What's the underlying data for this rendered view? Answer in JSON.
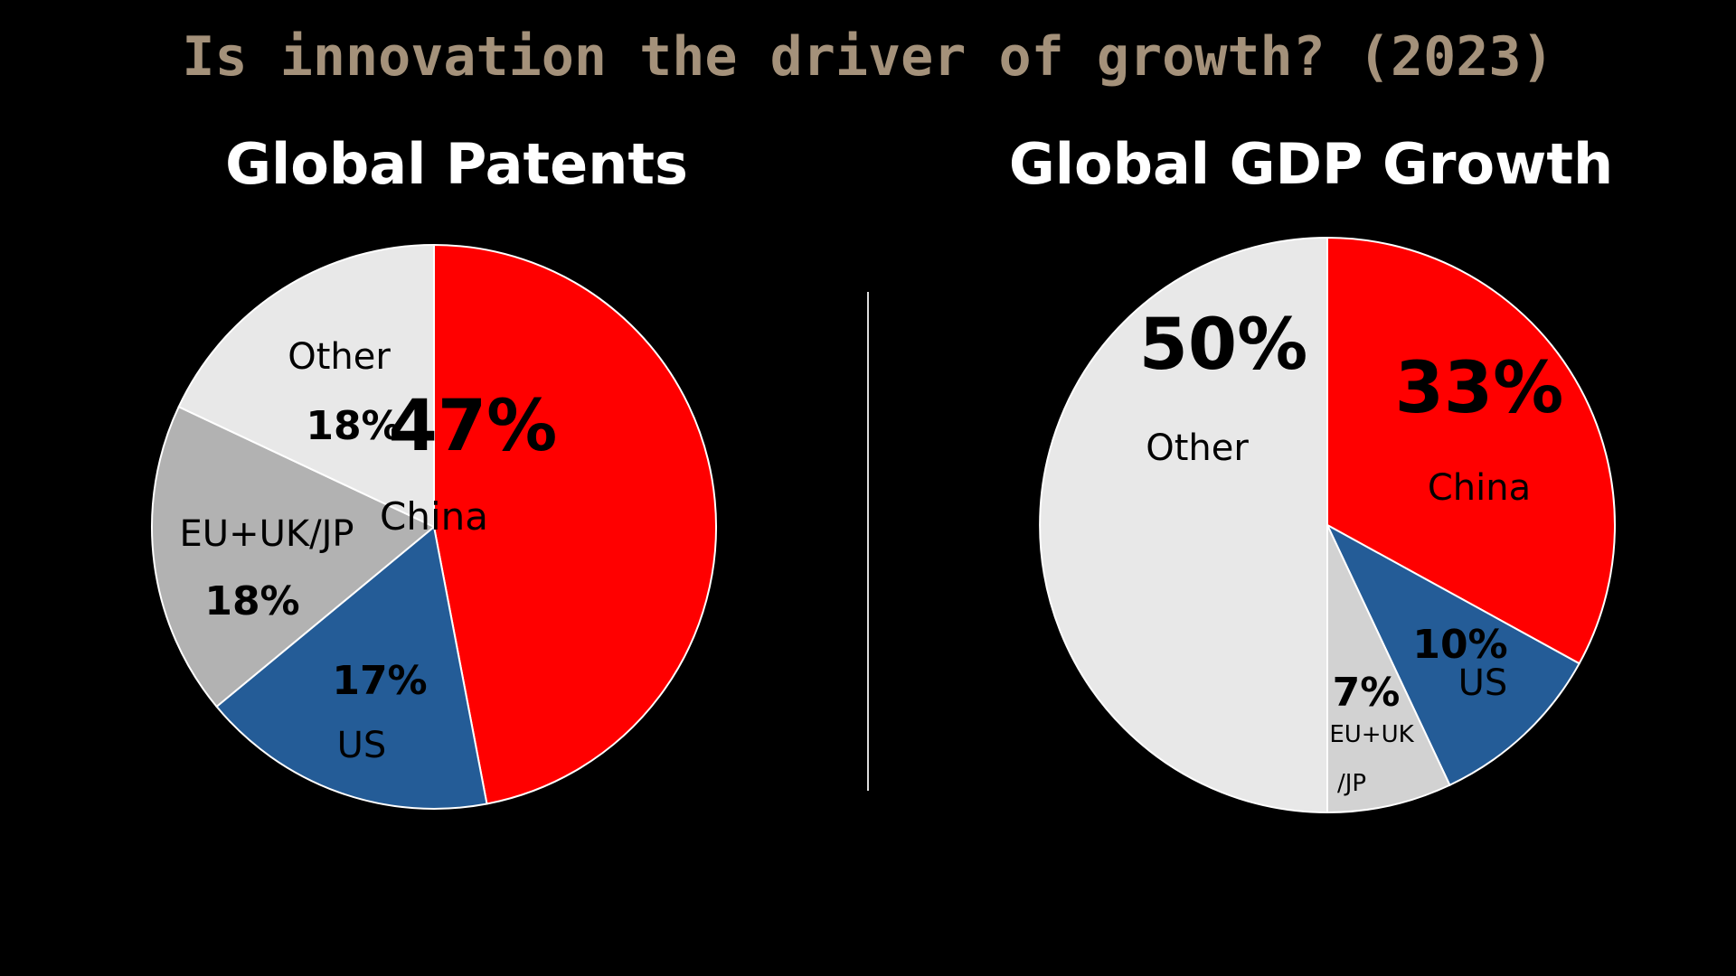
{
  "page_title": "Is innovation the driver of growth? (2023)",
  "colors": {
    "background": "#000000",
    "title": "#A4917A",
    "china": "#FF0000",
    "us": "#245C97",
    "eu_uk_jp_patents": "#B2B2B2",
    "eu_uk_jp_gdp": "#D2D2D2",
    "other": "#E8E8E8"
  },
  "chart_data": [
    {
      "type": "pie",
      "title": "Global Patents",
      "slices": [
        {
          "label": "China",
          "value": 47,
          "display": "47%",
          "color": "#FF0000"
        },
        {
          "label": "US",
          "value": 17,
          "display": "17%",
          "color": "#245C97"
        },
        {
          "label": "EU+UK/JP",
          "value": 18,
          "display": "18%",
          "color": "#B2B2B2"
        },
        {
          "label": "Other",
          "value": 18,
          "display": "18%",
          "color": "#E8E8E8"
        }
      ]
    },
    {
      "type": "pie",
      "title": "Global GDP Growth",
      "slices": [
        {
          "label": "China",
          "value": 33,
          "display": "33%",
          "color": "#FF0000"
        },
        {
          "label": "US",
          "value": 10,
          "display": "10%",
          "color": "#245C97"
        },
        {
          "label": "EU+UK/JP",
          "label_lines": [
            "EU+UK",
            "/JP"
          ],
          "value": 7,
          "display": "7%",
          "color": "#D2D2D2"
        },
        {
          "label": "Other",
          "value": 50,
          "display": "50%",
          "color": "#E8E8E8"
        }
      ]
    }
  ]
}
